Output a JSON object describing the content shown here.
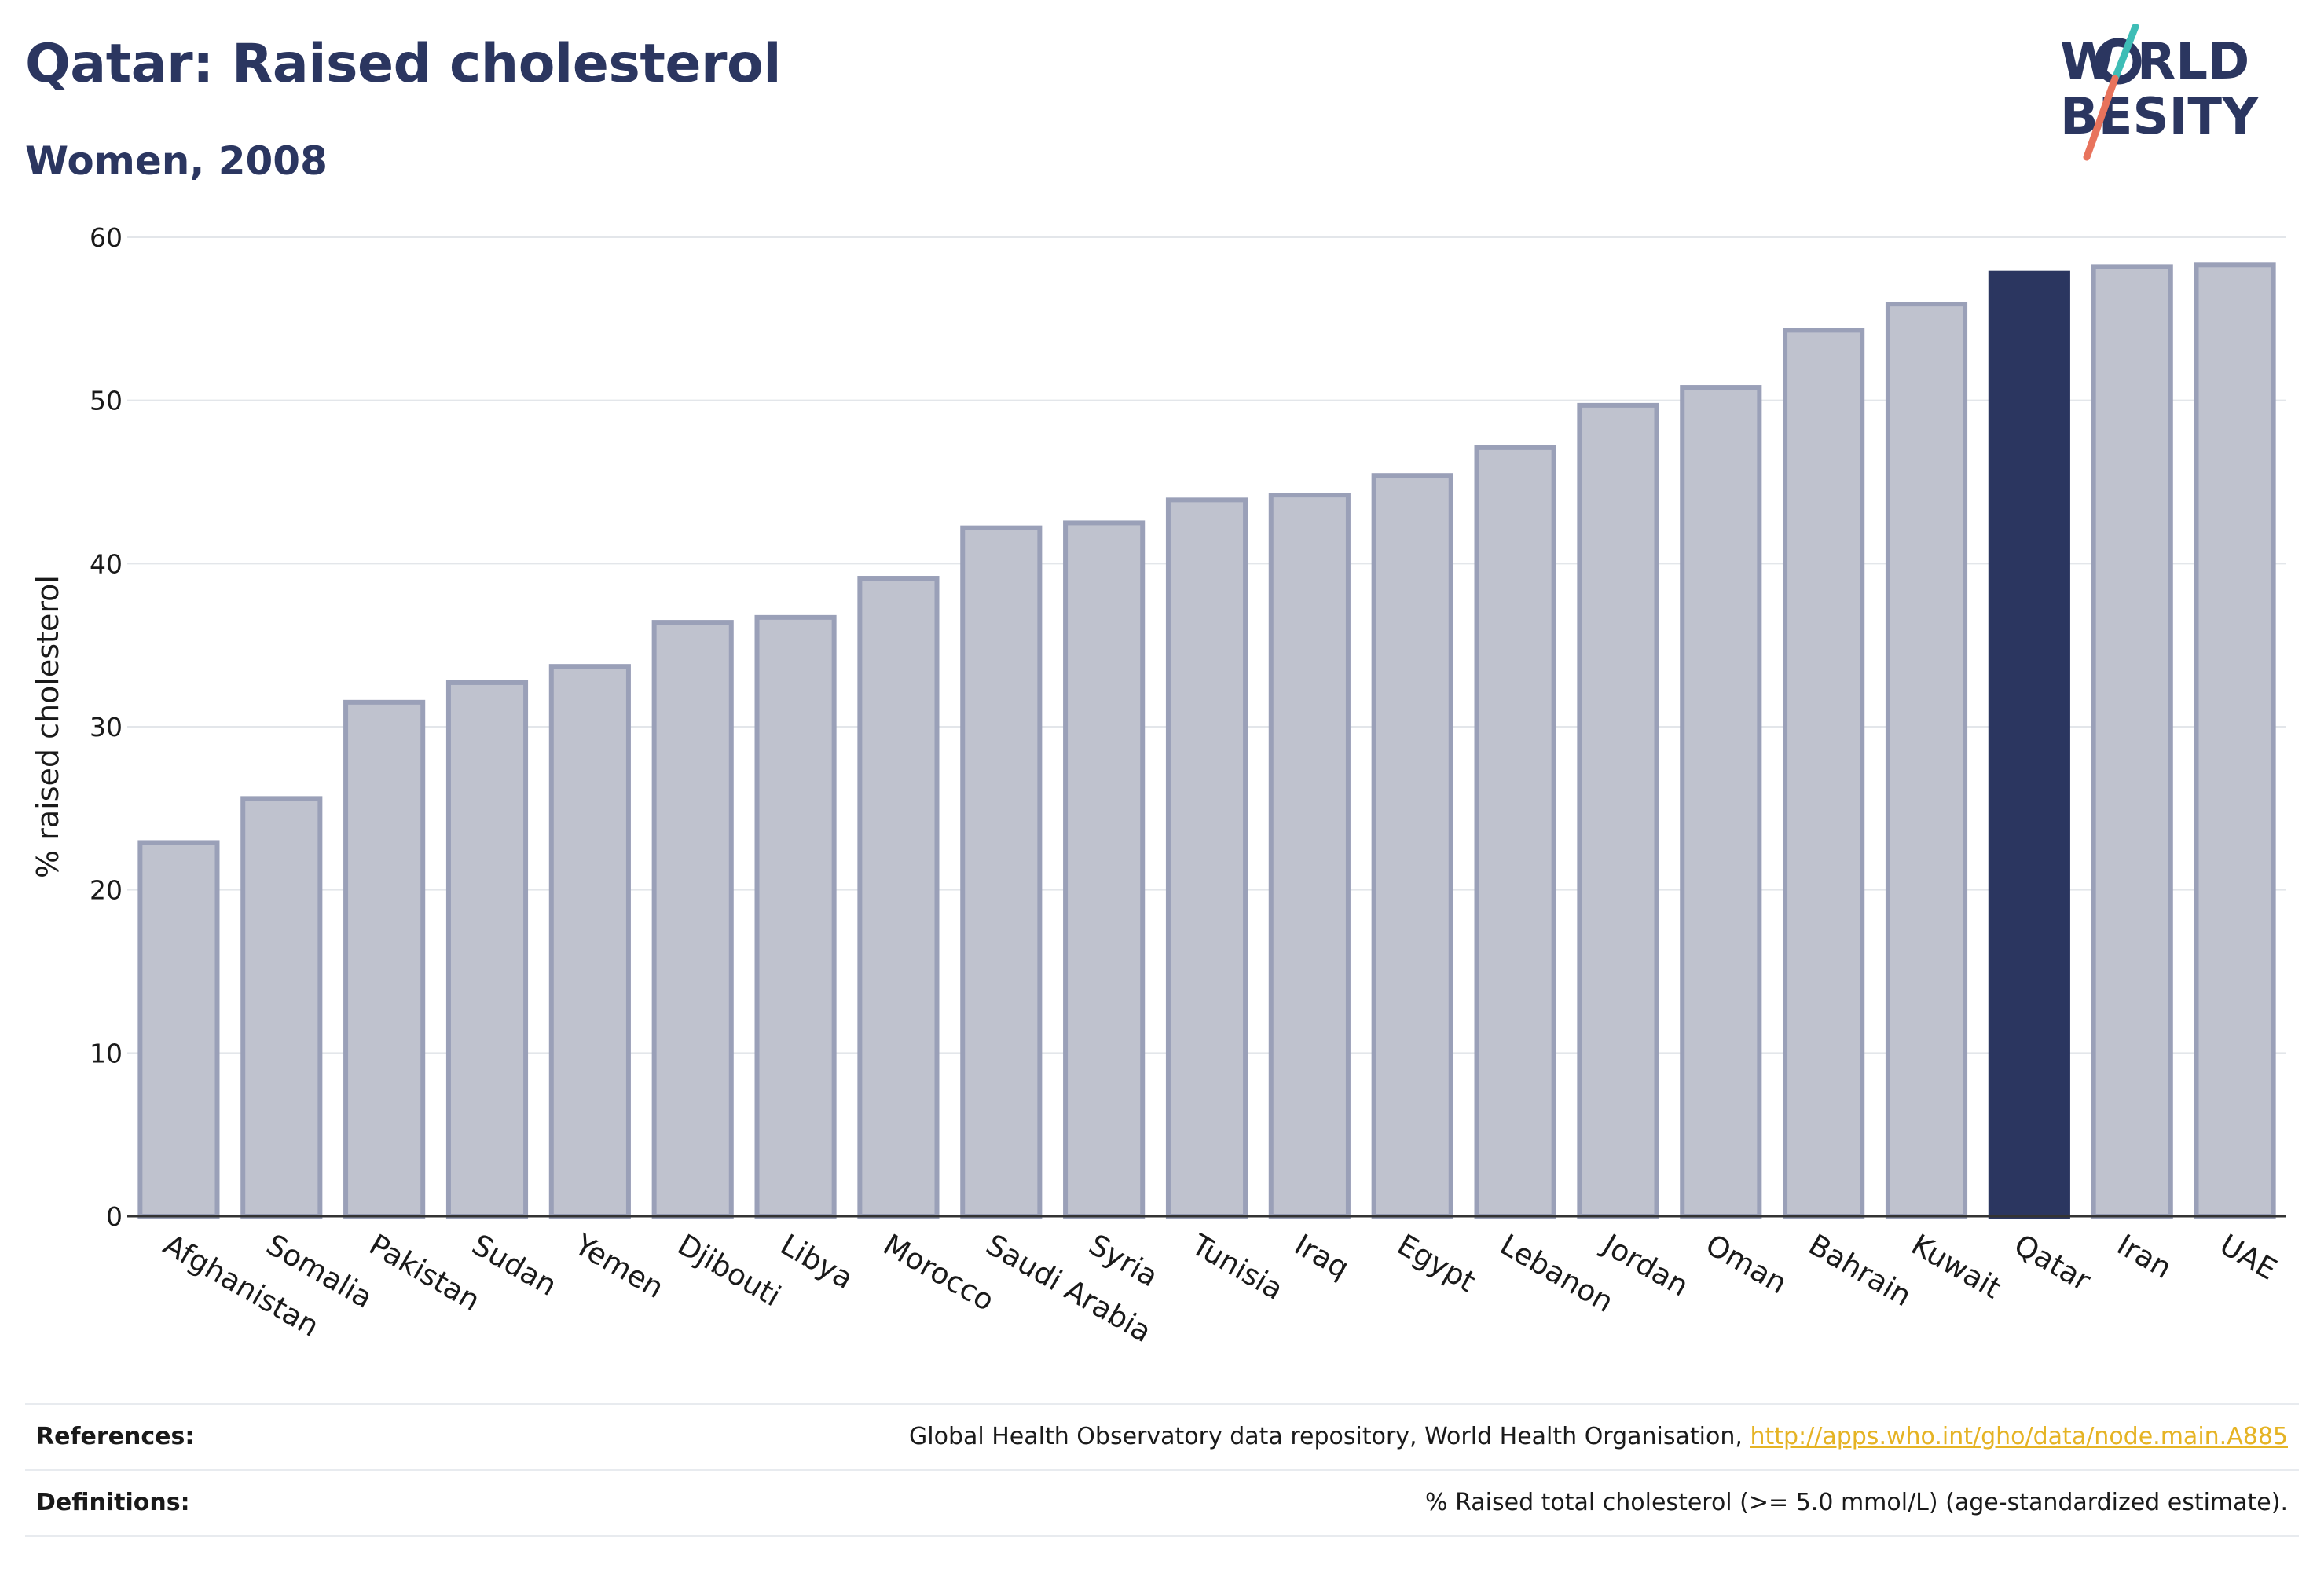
{
  "header": {
    "title": "Qatar: Raised cholesterol",
    "subtitle": "Women, 2008"
  },
  "logo": {
    "line1": "W RLD",
    "line2": " BESITY",
    "slash_colors": [
      "#3ebdb6",
      "#e8735c"
    ],
    "text_color": "#2b3660"
  },
  "colors": {
    "highlight": "#2b3660",
    "bar_fill": "#bfc2ce",
    "bar_stroke": "#9aa0b8",
    "gridline": "#e3e6ea"
  },
  "chart_data": {
    "type": "bar",
    "title": "Qatar: Raised cholesterol",
    "subtitle": "Women, 2008",
    "xlabel": "",
    "ylabel": "% raised cholesterol",
    "ylim": [
      0,
      60
    ],
    "yticks": [
      0,
      10,
      20,
      30,
      40,
      50,
      60
    ],
    "grid": true,
    "highlight": "Qatar",
    "categories": [
      "Afghanistan",
      "Somalia",
      "Pakistan",
      "Sudan",
      "Yemen",
      "Djibouti",
      "Libya",
      "Morocco",
      "Saudi Arabia",
      "Syria",
      "Tunisia",
      "Iraq",
      "Egypt",
      "Lebanon",
      "Jordan",
      "Oman",
      "Bahrain",
      "Kuwait",
      "Qatar",
      "Iran",
      "UAE"
    ],
    "values": [
      22.9,
      25.6,
      31.5,
      32.7,
      33.7,
      36.4,
      36.7,
      39.1,
      42.2,
      42.5,
      43.9,
      44.2,
      45.4,
      47.1,
      49.7,
      50.8,
      54.3,
      55.9,
      57.8,
      58.2,
      58.3
    ]
  },
  "footer": {
    "references_label": "References:",
    "references_text": "Global Health Observatory data repository, World Health Organisation, ",
    "references_link": "http://apps.who.int/gho/data/node.main.A885",
    "definitions_label": "Definitions:",
    "definitions_text": "% Raised total cholesterol (>= 5.0 mmol/L) (age-standardized estimate)."
  }
}
